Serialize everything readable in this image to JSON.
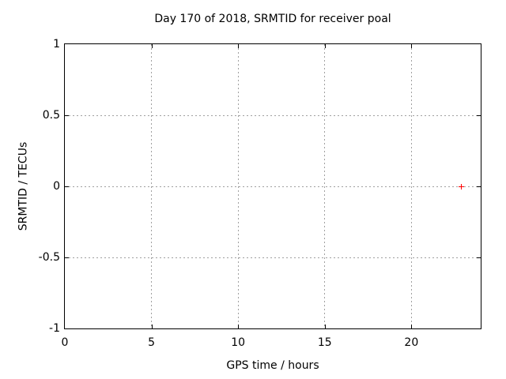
{
  "chart_data": {
    "type": "scatter",
    "title": "Day 170 of 2018, SRMTID for receiver poal",
    "xlabel": "GPS time / hours",
    "ylabel": "SRMTID / TECUs",
    "xlim": [
      0,
      24
    ],
    "ylim": [
      -1,
      1
    ],
    "xticks": [
      0,
      5,
      10,
      15,
      20
    ],
    "yticks": [
      1,
      0.5,
      0,
      -0.5,
      -1
    ],
    "grid": true,
    "grid_style": "dotted",
    "legend": "none",
    "series": [
      {
        "name": "SRMTID",
        "marker": "plus",
        "color": "#ff0000",
        "points": [
          {
            "x": 22.9,
            "y": 0
          }
        ]
      }
    ]
  },
  "colors": {
    "background": "#ffffff",
    "border": "#000000",
    "grid": "#a0a0a0",
    "text": "#000000",
    "marker": "#ff0000"
  }
}
